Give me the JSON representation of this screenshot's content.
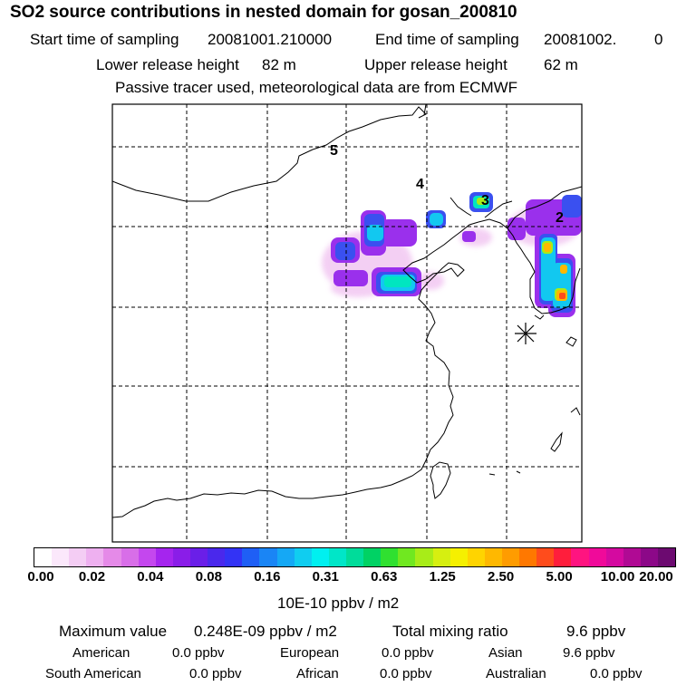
{
  "title": "SO2 source contributions in nested domain for gosan_200810",
  "sampling": {
    "start_label": "Start time of sampling",
    "start_value": "20081001.210000",
    "end_label": "End time of sampling",
    "end_value": "20081002.",
    "end_extra": "0"
  },
  "release": {
    "lower_label": "Lower release height",
    "lower_value": "82 m",
    "upper_label": "Upper release height",
    "upper_value": "62 m"
  },
  "note": "Passive tracer used, meteorological data are from ECMWF",
  "map_labels": [
    "5",
    "4",
    "3",
    "2"
  ],
  "colorbar": {
    "ticks": [
      "0.00",
      "0.02",
      "0.04",
      "0.08",
      "0.16",
      "0.31",
      "0.63",
      "1.25",
      "2.50",
      "5.00",
      "10.00",
      "20.00"
    ],
    "unit": "10E-10 ppbv / m2",
    "colors": [
      "#ffffff",
      "#fbe8fb",
      "#f4cdf4",
      "#eeb0f0",
      "#e58ae8",
      "#d86ee8",
      "#c447ee",
      "#a525ee",
      "#8a1de8",
      "#6a1fe8",
      "#4a28ec",
      "#3333f5",
      "#1f5ff5",
      "#1a85f5",
      "#15a8f5",
      "#10cdf0",
      "#00f0f0",
      "#00e6c8",
      "#00dc9a",
      "#00d264",
      "#30e030",
      "#70e820",
      "#a8ec18",
      "#d6ef10",
      "#f5f000",
      "#ffd400",
      "#ffb800",
      "#ff9c00",
      "#ff7800",
      "#ff4c1c",
      "#ff1e3c",
      "#ff1480",
      "#f00a9a",
      "#d40aa0",
      "#b00a94",
      "#8c0888",
      "#6c0a70"
    ]
  },
  "stats": {
    "max_label": "Maximum value",
    "max_value": "0.248E-09 ppbv / m2",
    "total_label": "Total mixing ratio",
    "total_value": "9.6 ppbv"
  },
  "regions": [
    {
      "name": "American",
      "value": "0.0 ppbv"
    },
    {
      "name": "European",
      "value": "0.0 ppbv"
    },
    {
      "name": "Asian",
      "value": "9.6 ppbv"
    },
    {
      "name": "South American",
      "value": "0.0 ppbv"
    },
    {
      "name": "African",
      "value": "0.0 ppbv"
    },
    {
      "name": "Australian",
      "value": "0.0 ppbv"
    }
  ]
}
